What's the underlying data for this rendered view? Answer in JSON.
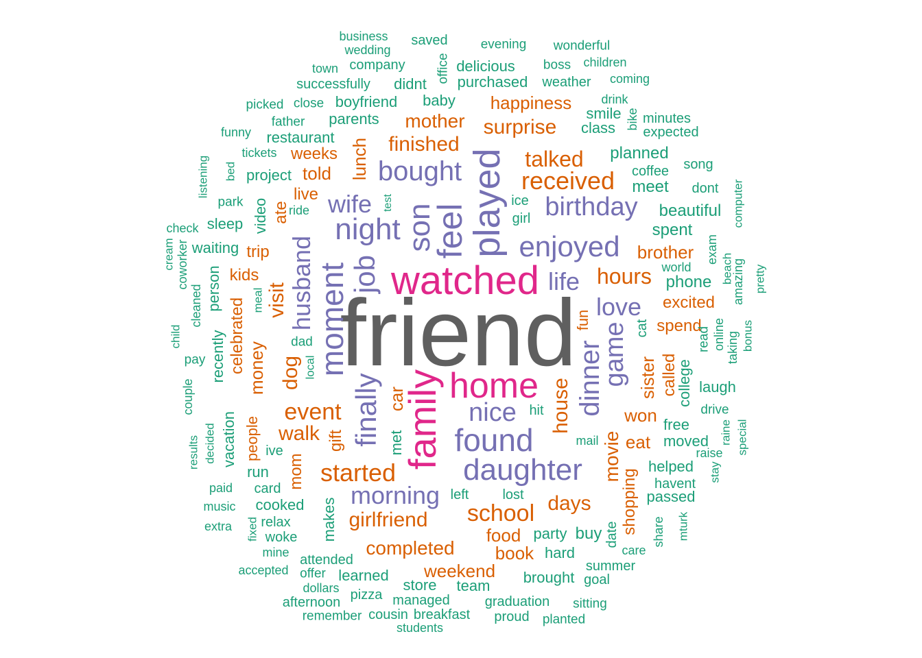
{
  "palette": {
    "gray": "#5f5f5f",
    "pink": "#e0278a",
    "purple": "#7570b3",
    "orange": "#d95f02",
    "green": "#1b9e77"
  },
  "words": [
    {
      "text": "friend",
      "tier": "gray",
      "weight": 100
    },
    {
      "text": "watched",
      "tier": "pink",
      "weight": 50
    },
    {
      "text": "family",
      "tier": "pink",
      "weight": 48
    },
    {
      "text": "home",
      "tier": "pink",
      "weight": 45
    },
    {
      "text": "played",
      "tier": "purple",
      "weight": 42
    },
    {
      "text": "feel",
      "tier": "purple",
      "weight": 40
    },
    {
      "text": "son",
      "tier": "purple",
      "weight": 38
    },
    {
      "text": "night",
      "tier": "purple",
      "weight": 38
    },
    {
      "text": "found",
      "tier": "purple",
      "weight": 38
    },
    {
      "text": "daughter",
      "tier": "purple",
      "weight": 37
    },
    {
      "text": "moment",
      "tier": "purple",
      "weight": 36
    },
    {
      "text": "job",
      "tier": "purple",
      "weight": 36
    },
    {
      "text": "finally",
      "tier": "purple",
      "weight": 36
    },
    {
      "text": "bought",
      "tier": "purple",
      "weight": 35
    },
    {
      "text": "enjoyed",
      "tier": "purple",
      "weight": 35
    },
    {
      "text": "birthday",
      "tier": "purple",
      "weight": 34
    },
    {
      "text": "dinner",
      "tier": "purple",
      "weight": 34
    },
    {
      "text": "game",
      "tier": "purple",
      "weight": 33
    },
    {
      "text": "husband",
      "tier": "purple",
      "weight": 33
    },
    {
      "text": "wife",
      "tier": "purple",
      "weight": 32
    },
    {
      "text": "nice",
      "tier": "purple",
      "weight": 32
    },
    {
      "text": "morning",
      "tier": "purple",
      "weight": 32
    },
    {
      "text": "life",
      "tier": "purple",
      "weight": 31
    },
    {
      "text": "love",
      "tier": "purple",
      "weight": 30
    },
    {
      "text": "received",
      "tier": "orange",
      "weight": 30
    },
    {
      "text": "started",
      "tier": "orange",
      "weight": 30
    },
    {
      "text": "school",
      "tier": "orange",
      "weight": 29
    },
    {
      "text": "event",
      "tier": "orange",
      "weight": 29
    },
    {
      "text": "hours",
      "tier": "orange",
      "weight": 28
    },
    {
      "text": "girlfriend",
      "tier": "orange",
      "weight": 28
    },
    {
      "text": "talked",
      "tier": "orange",
      "weight": 28
    },
    {
      "text": "house",
      "tier": "orange",
      "weight": 28
    },
    {
      "text": "surprise",
      "tier": "orange",
      "weight": 27
    },
    {
      "text": "finished",
      "tier": "orange",
      "weight": 27
    },
    {
      "text": "visit",
      "tier": "orange",
      "weight": 27
    },
    {
      "text": "dog",
      "tier": "orange",
      "weight": 27
    },
    {
      "text": "mother",
      "tier": "orange",
      "weight": 26
    },
    {
      "text": "days",
      "tier": "orange",
      "weight": 26
    },
    {
      "text": "walk",
      "tier": "orange",
      "weight": 26
    },
    {
      "text": "completed",
      "tier": "orange",
      "weight": 25
    },
    {
      "text": "happiness",
      "tier": "orange",
      "weight": 25
    },
    {
      "text": "weekend",
      "tier": "orange",
      "weight": 25
    },
    {
      "text": "movie",
      "tier": "orange",
      "weight": 25
    },
    {
      "text": "car",
      "tier": "orange",
      "weight": 25
    },
    {
      "text": "sister",
      "tier": "orange",
      "weight": 25
    },
    {
      "text": "lunch",
      "tier": "orange",
      "weight": 24
    },
    {
      "text": "brother",
      "tier": "orange",
      "weight": 24
    },
    {
      "text": "money",
      "tier": "orange",
      "weight": 24
    },
    {
      "text": "food",
      "tier": "orange",
      "weight": 24
    },
    {
      "text": "excited",
      "tier": "orange",
      "weight": 24
    },
    {
      "text": "book",
      "tier": "orange",
      "weight": 24
    },
    {
      "text": "called",
      "tier": "orange",
      "weight": 24
    },
    {
      "text": "won",
      "tier": "orange",
      "weight": 24
    },
    {
      "text": "weeks",
      "tier": "orange",
      "weight": 23
    },
    {
      "text": "told",
      "tier": "orange",
      "weight": 23
    },
    {
      "text": "spend",
      "tier": "orange",
      "weight": 23
    },
    {
      "text": "shopping",
      "tier": "orange",
      "weight": 23
    },
    {
      "text": "eat",
      "tier": "orange",
      "weight": 23
    },
    {
      "text": "trip",
      "tier": "orange",
      "weight": 23
    },
    {
      "text": "celebrated",
      "tier": "orange",
      "weight": 23
    },
    {
      "text": "fun",
      "tier": "orange",
      "weight": 23
    },
    {
      "text": "live",
      "tier": "orange",
      "weight": 22
    },
    {
      "text": "ate",
      "tier": "orange",
      "weight": 22
    },
    {
      "text": "kids",
      "tier": "orange",
      "weight": 22
    },
    {
      "text": "gift",
      "tier": "orange",
      "weight": 22
    },
    {
      "text": "people",
      "tier": "orange",
      "weight": 22
    },
    {
      "text": "mom",
      "tier": "orange",
      "weight": 22
    },
    {
      "text": "met",
      "tier": "green",
      "weight": 22
    },
    {
      "text": "planned",
      "tier": "green",
      "weight": 22
    },
    {
      "text": "meet",
      "tier": "green",
      "weight": 22
    },
    {
      "text": "beautiful",
      "tier": "green",
      "weight": 22
    },
    {
      "text": "spent",
      "tier": "green",
      "weight": 22
    },
    {
      "text": "phone",
      "tier": "green",
      "weight": 22
    },
    {
      "text": "party",
      "tier": "green",
      "weight": 22
    },
    {
      "text": "buy",
      "tier": "green",
      "weight": 22
    },
    {
      "text": "brought",
      "tier": "green",
      "weight": 22
    },
    {
      "text": "learned",
      "tier": "green",
      "weight": 22
    },
    {
      "text": "helped",
      "tier": "green",
      "weight": 22
    },
    {
      "text": "moved",
      "tier": "green",
      "weight": 22
    },
    {
      "text": "hard",
      "tier": "green",
      "weight": 21
    },
    {
      "text": "cooked",
      "tier": "green",
      "weight": 21
    },
    {
      "text": "delicious",
      "tier": "green",
      "weight": 21
    },
    {
      "text": "purchased",
      "tier": "green",
      "weight": 21
    },
    {
      "text": "boyfriend",
      "tier": "green",
      "weight": 21
    },
    {
      "text": "baby",
      "tier": "green",
      "weight": 21
    },
    {
      "text": "class",
      "tier": "green",
      "weight": 21
    },
    {
      "text": "parents",
      "tier": "green",
      "weight": 21
    },
    {
      "text": "restaurant",
      "tier": "green",
      "weight": 21
    },
    {
      "text": "project",
      "tier": "green",
      "weight": 21
    },
    {
      "text": "sleep",
      "tier": "green",
      "weight": 21
    },
    {
      "text": "waiting",
      "tier": "green",
      "weight": 21
    },
    {
      "text": "free",
      "tier": "green",
      "weight": 21
    },
    {
      "text": "laugh",
      "tier": "green",
      "weight": 21
    },
    {
      "text": "college",
      "tier": "green",
      "weight": 21
    },
    {
      "text": "vacation",
      "tier": "green",
      "weight": 21
    },
    {
      "text": "makes",
      "tier": "green",
      "weight": 21
    },
    {
      "text": "store",
      "tier": "green",
      "weight": 21
    },
    {
      "text": "team",
      "tier": "green",
      "weight": 21
    },
    {
      "text": "managed",
      "tier": "green",
      "weight": 21
    },
    {
      "text": "graduation",
      "tier": "green",
      "weight": 21
    },
    {
      "text": "didnt",
      "tier": "green",
      "weight": 21
    },
    {
      "text": "smile",
      "tier": "green",
      "weight": 21
    },
    {
      "text": "video",
      "tier": "green",
      "weight": 21
    },
    {
      "text": "person",
      "tier": "green",
      "weight": 21
    },
    {
      "text": "recently",
      "tier": "green",
      "weight": 21
    },
    {
      "text": "run",
      "tier": "green",
      "weight": 20
    },
    {
      "text": "passed",
      "tier": "green",
      "weight": 20
    },
    {
      "text": "havent",
      "tier": "green",
      "weight": 20
    },
    {
      "text": "girl",
      "tier": "green",
      "weight": 20
    },
    {
      "text": "ice",
      "tier": "green",
      "weight": 19
    },
    {
      "text": "hit",
      "tier": "green",
      "weight": 19
    },
    {
      "text": "mail",
      "tier": "green",
      "weight": 18
    },
    {
      "text": "lost",
      "tier": "green",
      "weight": 19
    },
    {
      "text": "left",
      "tier": "green",
      "weight": 19
    },
    {
      "text": "card",
      "tier": "green",
      "weight": 19
    },
    {
      "text": "ive",
      "tier": "green",
      "weight": 20
    },
    {
      "text": "relax",
      "tier": "green",
      "weight": 20
    },
    {
      "text": "woke",
      "tier": "green",
      "weight": 20
    },
    {
      "text": "attended",
      "tier": "green",
      "weight": 20
    },
    {
      "text": "offer",
      "tier": "green",
      "weight": 19
    },
    {
      "text": "dollars",
      "tier": "green",
      "weight": 18
    },
    {
      "text": "pizza",
      "tier": "green",
      "weight": 19
    },
    {
      "text": "afternoon",
      "tier": "green",
      "weight": 19
    },
    {
      "text": "remember",
      "tier": "green",
      "weight": 18
    },
    {
      "text": "cousin",
      "tier": "green",
      "weight": 20
    },
    {
      "text": "breakfast",
      "tier": "green",
      "weight": 20
    },
    {
      "text": "students",
      "tier": "green",
      "weight": 18
    },
    {
      "text": "proud",
      "tier": "green",
      "weight": 20
    },
    {
      "text": "planted",
      "tier": "green",
      "weight": 18
    },
    {
      "text": "sitting",
      "tier": "green",
      "weight": 18
    },
    {
      "text": "goal",
      "tier": "green",
      "weight": 19
    },
    {
      "text": "summer",
      "tier": "green",
      "weight": 19
    },
    {
      "text": "care",
      "tier": "green",
      "weight": 18
    },
    {
      "text": "date",
      "tier": "green",
      "weight": 19
    },
    {
      "text": "share",
      "tier": "green",
      "weight": 18
    },
    {
      "text": "mturk",
      "tier": "green",
      "weight": 17
    },
    {
      "text": "stay",
      "tier": "green",
      "weight": 17
    },
    {
      "text": "raise",
      "tier": "green",
      "weight": 18
    },
    {
      "text": "drive",
      "tier": "green",
      "weight": 19
    },
    {
      "text": "raine",
      "tier": "green",
      "weight": 17
    },
    {
      "text": "special",
      "tier": "green",
      "weight": 17
    },
    {
      "text": "online",
      "tier": "green",
      "weight": 18
    },
    {
      "text": "taking",
      "tier": "green",
      "weight": 18
    },
    {
      "text": "bonus",
      "tier": "green",
      "weight": 17
    },
    {
      "text": "read",
      "tier": "green",
      "weight": 19
    },
    {
      "text": "cat",
      "tier": "green",
      "weight": 20
    },
    {
      "text": "world",
      "tier": "green",
      "weight": 18
    },
    {
      "text": "exam",
      "tier": "green",
      "weight": 18
    },
    {
      "text": "beach",
      "tier": "green",
      "weight": 17
    },
    {
      "text": "amazing",
      "tier": "green",
      "weight": 18
    },
    {
      "text": "pretty",
      "tier": "green",
      "weight": 17
    },
    {
      "text": "computer",
      "tier": "green",
      "weight": 17
    },
    {
      "text": "dont",
      "tier": "green",
      "weight": 19
    },
    {
      "text": "song",
      "tier": "green",
      "weight": 19
    },
    {
      "text": "coffee",
      "tier": "green",
      "weight": 19
    },
    {
      "text": "bike",
      "tier": "green",
      "weight": 18
    },
    {
      "text": "minutes",
      "tier": "green",
      "weight": 19
    },
    {
      "text": "expected",
      "tier": "green",
      "weight": 19
    },
    {
      "text": "drink",
      "tier": "green",
      "weight": 18
    },
    {
      "text": "coming",
      "tier": "green",
      "weight": 18
    },
    {
      "text": "weather",
      "tier": "green",
      "weight": 19
    },
    {
      "text": "boss",
      "tier": "green",
      "weight": 19
    },
    {
      "text": "children",
      "tier": "green",
      "weight": 18
    },
    {
      "text": "wonderful",
      "tier": "green",
      "weight": 19
    },
    {
      "text": "evening",
      "tier": "green",
      "weight": 19
    },
    {
      "text": "saved",
      "tier": "green",
      "weight": 19
    },
    {
      "text": "office",
      "tier": "green",
      "weight": 18
    },
    {
      "text": "business",
      "tier": "green",
      "weight": 18
    },
    {
      "text": "wedding",
      "tier": "green",
      "weight": 18
    },
    {
      "text": "town",
      "tier": "green",
      "weight": 18
    },
    {
      "text": "company",
      "tier": "green",
      "weight": 19
    },
    {
      "text": "successfully",
      "tier": "green",
      "weight": 19
    },
    {
      "text": "picked",
      "tier": "green",
      "weight": 18
    },
    {
      "text": "close",
      "tier": "green",
      "weight": 18
    },
    {
      "text": "father",
      "tier": "green",
      "weight": 19
    },
    {
      "text": "funny",
      "tier": "green",
      "weight": 18
    },
    {
      "text": "tickets",
      "tier": "green",
      "weight": 18
    },
    {
      "text": "bed",
      "tier": "green",
      "weight": 17
    },
    {
      "text": "listening",
      "tier": "green",
      "weight": 17
    },
    {
      "text": "park",
      "tier": "green",
      "weight": 19
    },
    {
      "text": "ride",
      "tier": "green",
      "weight": 18
    },
    {
      "text": "test",
      "tier": "green",
      "weight": 16
    },
    {
      "text": "check",
      "tier": "green",
      "weight": 18
    },
    {
      "text": "cream",
      "tier": "green",
      "weight": 17
    },
    {
      "text": "coworker",
      "tier": "green",
      "weight": 18
    },
    {
      "text": "meal",
      "tier": "green",
      "weight": 17
    },
    {
      "text": "cleaned",
      "tier": "green",
      "weight": 18
    },
    {
      "text": "child",
      "tier": "green",
      "weight": 17
    },
    {
      "text": "dad",
      "tier": "green",
      "weight": 19
    },
    {
      "text": "local",
      "tier": "green",
      "weight": 17
    },
    {
      "text": "pay",
      "tier": "green",
      "weight": 19
    },
    {
      "text": "couple",
      "tier": "green",
      "weight": 18
    },
    {
      "text": "results",
      "tier": "green",
      "weight": 17
    },
    {
      "text": "decided",
      "tier": "green",
      "weight": 17
    },
    {
      "text": "paid",
      "tier": "green",
      "weight": 18
    },
    {
      "text": "music",
      "tier": "green",
      "weight": 18
    },
    {
      "text": "extra",
      "tier": "green",
      "weight": 18
    },
    {
      "text": "fixed",
      "tier": "green",
      "weight": 17
    },
    {
      "text": "mine",
      "tier": "green",
      "weight": 18
    },
    {
      "text": "accepted",
      "tier": "green",
      "weight": 18
    }
  ]
}
